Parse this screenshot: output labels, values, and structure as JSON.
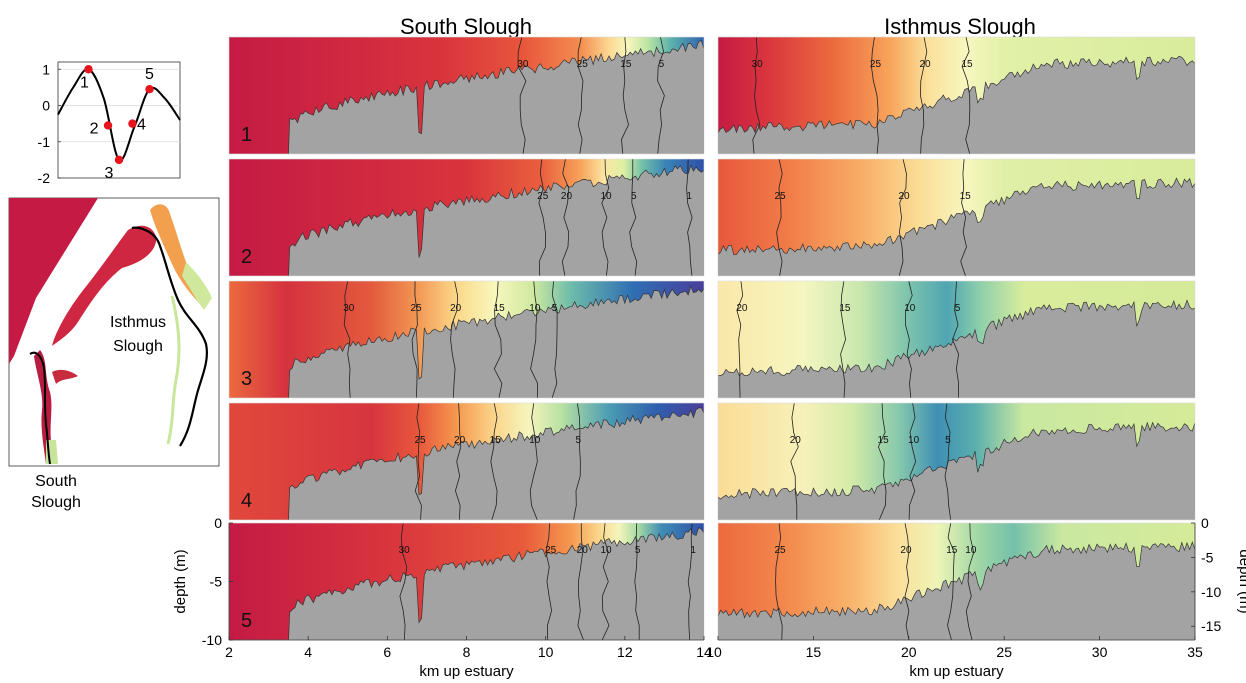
{
  "chart_data": [
    {
      "type": "line",
      "panel": "tidal-phase-inset",
      "title": "",
      "xlabel": "",
      "ylabel": "",
      "ylim": [
        -2,
        1.2
      ],
      "yticks": [
        1,
        0,
        -1,
        -2
      ],
      "ytick_labels": [
        "1",
        "0",
        "-1",
        "-2"
      ],
      "grid": true,
      "line_color": "#000000",
      "marker_color": "#e8141c",
      "series": [
        {
          "x": [
            0,
            0.125,
            0.25,
            0.375,
            0.5,
            0.625,
            0.75,
            0.875,
            1.0
          ],
          "y": [
            -0.25,
            0.5,
            1.0,
            0.2,
            -1.5,
            -0.6,
            0.45,
            0.2,
            -0.4
          ]
        }
      ],
      "markers": [
        {
          "label": "1",
          "x": 0.25,
          "y": 1.0
        },
        {
          "label": "2",
          "x": 0.41,
          "y": -0.55
        },
        {
          "label": "3",
          "x": 0.5,
          "y": -1.5
        },
        {
          "label": "4",
          "x": 0.61,
          "y": -0.5
        },
        {
          "label": "5",
          "x": 0.75,
          "y": 0.45
        }
      ]
    },
    {
      "type": "heatmap",
      "panel": "south-slough-sections",
      "title": "South Slough",
      "xlabel": "km up estuary",
      "ylabel": "depth (m)",
      "xlim": [
        2,
        14
      ],
      "ylim": [
        -10,
        0
      ],
      "xticks": [
        2,
        4,
        6,
        8,
        10,
        12,
        14
      ],
      "xtick_labels": [
        "2",
        "4",
        "6",
        "8",
        "10",
        "12",
        "14"
      ],
      "yticks": [
        0,
        -5,
        -10
      ],
      "ytick_labels": [
        "0",
        "-5",
        "-10"
      ],
      "rows": [
        {
          "phase": "1",
          "contours": [
            {
              "label": "30",
              "x": 9.4
            },
            {
              "label": "25",
              "x": 10.9
            },
            {
              "label": "15",
              "x": 12.0
            },
            {
              "label": "5",
              "x": 12.9
            }
          ]
        },
        {
          "phase": "2",
          "contours": [
            {
              "label": "25",
              "x": 9.9
            },
            {
              "label": "20",
              "x": 10.5
            },
            {
              "label": "10",
              "x": 11.5
            },
            {
              "label": "5",
              "x": 12.2
            },
            {
              "label": "1",
              "x": 13.6
            }
          ]
        },
        {
          "phase": "3",
          "contours": [
            {
              "label": "30",
              "x": 5.0
            },
            {
              "label": "25",
              "x": 6.7
            },
            {
              "label": "20",
              "x": 7.7
            },
            {
              "label": "15",
              "x": 8.8
            },
            {
              "label": "10",
              "x": 9.7
            },
            {
              "label": "5",
              "x": 10.2
            }
          ]
        },
        {
          "phase": "4",
          "contours": [
            {
              "label": "25",
              "x": 6.8
            },
            {
              "label": "20",
              "x": 7.8
            },
            {
              "label": "15",
              "x": 8.7
            },
            {
              "label": "10",
              "x": 9.7
            },
            {
              "label": "5",
              "x": 10.8
            }
          ]
        },
        {
          "phase": "5",
          "contours": [
            {
              "label": "30",
              "x": 6.4
            },
            {
              "label": "25",
              "x": 10.1
            },
            {
              "label": "20",
              "x": 10.9
            },
            {
              "label": "10",
              "x": 11.5
            },
            {
              "label": "5",
              "x": 12.3
            },
            {
              "label": "1",
              "x": 13.7
            }
          ]
        }
      ]
    },
    {
      "type": "heatmap",
      "panel": "isthmus-slough-sections",
      "title": "Isthmus Slough",
      "xlabel": "km up estuary",
      "ylabel": "depth (m)",
      "xlim": [
        10,
        35
      ],
      "ylim": [
        -17,
        0
      ],
      "xticks": [
        10,
        15,
        20,
        25,
        30,
        35
      ],
      "xtick_labels": [
        "10",
        "15",
        "20",
        "25",
        "30",
        "35"
      ],
      "yticks": [
        0,
        -5,
        -10,
        -15
      ],
      "ytick_labels": [
        "0",
        "-5",
        "-10",
        "-15"
      ],
      "rows": [
        {
          "phase": "1",
          "contours": [
            {
              "label": "30",
              "x": 12.0
            },
            {
              "label": "25",
              "x": 18.2
            },
            {
              "label": "20",
              "x": 20.8
            },
            {
              "label": "15",
              "x": 23.0
            }
          ]
        },
        {
          "phase": "2",
          "contours": [
            {
              "label": "25",
              "x": 13.2
            },
            {
              "label": "20",
              "x": 19.7
            },
            {
              "label": "15",
              "x": 22.9
            }
          ]
        },
        {
          "phase": "3",
          "contours": [
            {
              "label": "20",
              "x": 11.2
            },
            {
              "label": "15",
              "x": 16.6
            },
            {
              "label": "10",
              "x": 20.0
            },
            {
              "label": "5",
              "x": 22.5
            }
          ]
        },
        {
          "phase": "4",
          "contours": [
            {
              "label": "20",
              "x": 14.0
            },
            {
              "label": "15",
              "x": 18.6
            },
            {
              "label": "10",
              "x": 20.2
            },
            {
              "label": "5",
              "x": 22.0
            }
          ]
        },
        {
          "phase": "5",
          "contours": [
            {
              "label": "25",
              "x": 13.2
            },
            {
              "label": "20",
              "x": 19.8
            },
            {
              "label": "15",
              "x": 22.2
            },
            {
              "label": "10",
              "x": 23.2
            }
          ]
        }
      ]
    }
  ],
  "map": {
    "labels": {
      "isthmus": [
        "Isthmus",
        "Slough"
      ],
      "south": [
        "South",
        "Slough"
      ]
    }
  },
  "palette": [
    "#c41a44",
    "#d83a3a",
    "#ec6a3e",
    "#f8a35a",
    "#fbd98a",
    "#fbf7bd",
    "#dbee9b",
    "#98d3a6",
    "#4aa8b0",
    "#2f6fb4",
    "#4a3d9a"
  ],
  "land_color": "#a3a3a3"
}
